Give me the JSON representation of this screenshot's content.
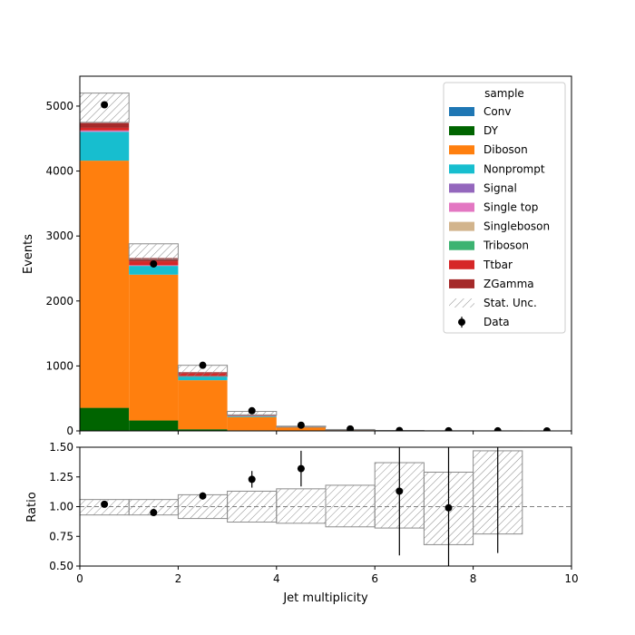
{
  "chart_data": {
    "type": "bar",
    "stacked": true,
    "xlabel": "Jet multiplicity",
    "bin_edges": [
      0,
      1,
      2,
      3,
      4,
      5,
      6,
      7,
      8,
      9,
      10
    ],
    "main": {
      "ylabel": "Events",
      "ylim": [
        0,
        5460
      ],
      "yticks": [
        0,
        1000,
        2000,
        3000,
        4000,
        5000
      ],
      "series": [
        {
          "name": "Conv",
          "color": "#1f77b4",
          "values": [
            0,
            0,
            0,
            0,
            0,
            0,
            0,
            0,
            0,
            0
          ]
        },
        {
          "name": "DY",
          "color": "#006400",
          "values": [
            355,
            160,
            25,
            8,
            2,
            0,
            0,
            0,
            0,
            0
          ]
        },
        {
          "name": "Diboson",
          "color": "#ff7f0e",
          "values": [
            3805,
            2245,
            755,
            205,
            55,
            15,
            4,
            1,
            0,
            0
          ]
        },
        {
          "name": "Nonprompt",
          "color": "#17becf",
          "values": [
            445,
            135,
            55,
            15,
            5,
            2,
            1,
            0,
            0,
            0
          ]
        },
        {
          "name": "Signal",
          "color": "#9467bd",
          "values": [
            0,
            0,
            0,
            0,
            0,
            0,
            0,
            0,
            0,
            0
          ]
        },
        {
          "name": "Single top",
          "color": "#e377c2",
          "values": [
            20,
            10,
            8,
            3,
            1,
            0,
            0,
            0,
            0,
            0
          ]
        },
        {
          "name": "Singleboson",
          "color": "#d2b48c",
          "values": [
            0,
            0,
            0,
            0,
            0,
            0,
            0,
            0,
            0,
            0
          ]
        },
        {
          "name": "Triboson",
          "color": "#3cb371",
          "values": [
            0,
            0,
            0,
            0,
            0,
            0,
            0,
            0,
            0,
            0
          ]
        },
        {
          "name": "Ttbar",
          "color": "#d62728",
          "values": [
            40,
            60,
            40,
            10,
            2,
            1,
            0,
            0,
            0,
            0
          ]
        },
        {
          "name": "ZGamma",
          "color": "#a52a2a",
          "values": [
            75,
            50,
            20,
            5,
            1,
            0,
            0,
            0,
            0,
            0
          ]
        }
      ],
      "stat_unc": {
        "label": "Stat. Unc.",
        "up": [
          5200,
          2880,
          1010,
          300,
          73,
          22,
          7,
          2.2,
          0.6,
          0
        ],
        "down": [
          4750,
          2640,
          840,
          246,
          58,
          15,
          4,
          0.9,
          0.2,
          0
        ]
      },
      "data": {
        "label": "Data",
        "x": [
          0.5,
          1.5,
          2.5,
          3.5,
          4.5,
          5.5,
          6.5,
          7.5,
          8.5,
          9.5
        ],
        "y": [
          5020,
          2570,
          1010,
          310,
          88,
          30,
          6,
          2,
          1,
          0
        ]
      },
      "legend": {
        "title": "sample",
        "position": "top-right"
      }
    },
    "ratio": {
      "ylabel": "Ratio",
      "ylim": [
        0.5,
        1.5
      ],
      "yticks": [
        "0.50",
        "0.75",
        "1.00",
        "1.25",
        "1.50"
      ],
      "reference": 1.0,
      "unc_up": [
        1.06,
        1.06,
        1.1,
        1.13,
        1.15,
        1.18,
        1.37,
        1.29,
        1.47
      ],
      "unc_down": [
        0.93,
        0.93,
        0.9,
        0.87,
        0.86,
        0.83,
        0.82,
        0.68,
        0.77
      ],
      "points": [
        {
          "x": 0.5,
          "y": 1.02,
          "err": 0.015
        },
        {
          "x": 1.5,
          "y": 0.95,
          "err": 0.02
        },
        {
          "x": 2.5,
          "y": 1.09,
          "err": 0.03
        },
        {
          "x": 3.5,
          "y": 1.23,
          "err": 0.07
        },
        {
          "x": 4.5,
          "y": 1.32,
          "err": 0.15
        },
        {
          "x": 6.5,
          "y": 1.13,
          "err": 0.54
        },
        {
          "x": 7.5,
          "y": 0.99,
          "err": 0.6
        },
        {
          "x": 8.5,
          "y": 1.6,
          "err": 0.99
        }
      ]
    },
    "xticks": [
      0,
      2,
      4,
      6,
      8,
      10
    ]
  }
}
